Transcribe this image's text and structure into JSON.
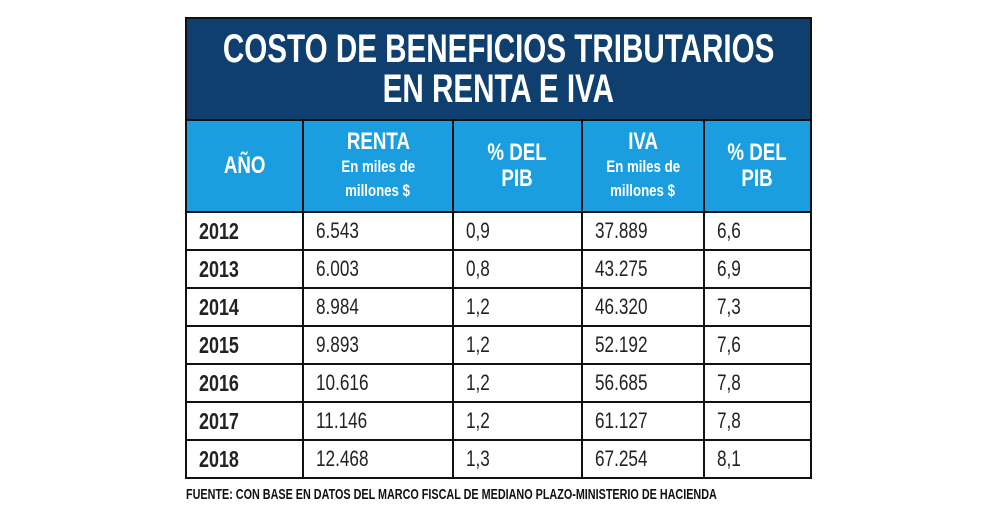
{
  "title": {
    "line1": "COSTO DE BENEFICIOS TRIBUTARIOS",
    "line2": "EN RENTA E IVA"
  },
  "headers": [
    {
      "main": "AÑO",
      "sub1": "",
      "sub2": ""
    },
    {
      "main": "RENTA",
      "sub1": "En miles de",
      "sub2": "millones $"
    },
    {
      "main": "% DEL",
      "sub1": "PIB",
      "sub2": ""
    },
    {
      "main": "IVA",
      "sub1": "En miles de",
      "sub2": "millones $"
    },
    {
      "main": "% DEL",
      "sub1": "PIB",
      "sub2": ""
    }
  ],
  "rows": [
    [
      "2012",
      "6.543",
      "0,9",
      "37.889",
      "6,6"
    ],
    [
      "2013",
      "6.003",
      "0,8",
      "43.275",
      "6,9"
    ],
    [
      "2014",
      "8.984",
      "1,2",
      "46.320",
      "7,3"
    ],
    [
      "2015",
      "9.893",
      "1,2",
      "52.192",
      "7,6"
    ],
    [
      "2016",
      "10.616",
      "1,2",
      "56.685",
      "7,8"
    ],
    [
      "2017",
      "11.146",
      "1,2",
      "61.127",
      "7,8"
    ],
    [
      "2018",
      "12.468",
      "1,3",
      "67.254",
      "8,1"
    ]
  ],
  "source": "FUENTE: CON BASE EN DATOS DEL MARCO FISCAL DE MEDIANO PLAZO-MINISTERIO DE HACIENDA",
  "colors": {
    "title_bg": "#0f3f6e",
    "header_bg": "#1b9ee0"
  }
}
